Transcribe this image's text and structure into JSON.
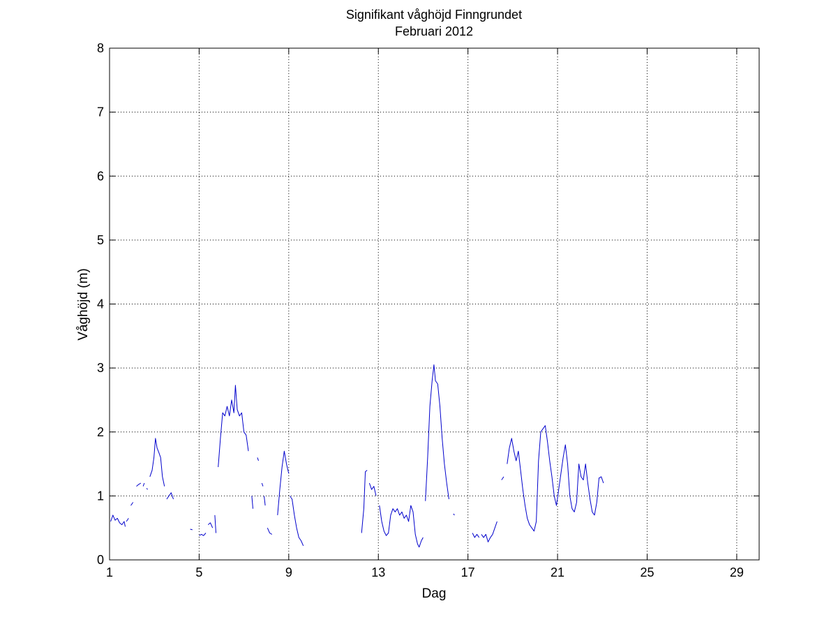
{
  "chart_data": {
    "type": "line",
    "title": "Signifikant våghöjd Finngrundet",
    "subtitle": "Februari 2012",
    "xlabel": "Dag",
    "ylabel": "Våghöjd (m)",
    "xlim": [
      1,
      30
    ],
    "ylim": [
      0,
      8
    ],
    "xticks": [
      1,
      5,
      9,
      13,
      17,
      21,
      25,
      29
    ],
    "yticks": [
      0,
      1,
      2,
      3,
      4,
      5,
      6,
      7,
      8
    ],
    "grid": true,
    "line_color": "#0000cc",
    "series": [
      {
        "segments": [
          [
            [
              1.05,
              0.6
            ],
            [
              1.15,
              0.7
            ],
            [
              1.25,
              0.62
            ],
            [
              1.35,
              0.65
            ],
            [
              1.45,
              0.58
            ],
            [
              1.55,
              0.55
            ],
            [
              1.65,
              0.6
            ],
            [
              1.7,
              0.52
            ]
          ],
          [
            [
              1.75,
              0.6
            ],
            [
              1.85,
              0.65
            ]
          ],
          [
            [
              1.95,
              0.85
            ],
            [
              2.05,
              0.9
            ]
          ],
          [
            [
              2.2,
              1.15
            ],
            [
              2.3,
              1.18
            ],
            [
              2.4,
              1.2
            ]
          ],
          [
            [
              2.5,
              1.15
            ],
            [
              2.55,
              1.2
            ]
          ],
          [
            [
              2.65,
              1.12
            ],
            [
              2.7,
              1.1
            ]
          ],
          [
            [
              2.8,
              1.3
            ],
            [
              2.9,
              1.4
            ],
            [
              2.98,
              1.6
            ],
            [
              3.05,
              1.9
            ],
            [
              3.12,
              1.75
            ],
            [
              3.2,
              1.68
            ],
            [
              3.28,
              1.6
            ],
            [
              3.36,
              1.3
            ],
            [
              3.45,
              1.15
            ]
          ],
          [
            [
              3.55,
              0.95
            ],
            [
              3.65,
              1.0
            ],
            [
              3.75,
              1.05
            ],
            [
              3.85,
              0.95
            ]
          ],
          [
            [
              4.6,
              0.48
            ],
            [
              4.7,
              0.47
            ]
          ],
          [
            [
              5.0,
              0.38
            ],
            [
              5.1,
              0.4
            ],
            [
              5.2,
              0.38
            ],
            [
              5.3,
              0.42
            ]
          ],
          [
            [
              5.4,
              0.55
            ],
            [
              5.5,
              0.58
            ],
            [
              5.6,
              0.5
            ]
          ],
          [
            [
              5.7,
              0.7
            ],
            [
              5.75,
              0.42
            ]
          ],
          [
            [
              5.85,
              1.45
            ],
            [
              5.95,
              1.9
            ],
            [
              6.05,
              2.3
            ],
            [
              6.15,
              2.25
            ],
            [
              6.25,
              2.4
            ],
            [
              6.35,
              2.25
            ],
            [
              6.45,
              2.5
            ],
            [
              6.55,
              2.3
            ],
            [
              6.62,
              2.73
            ],
            [
              6.7,
              2.35
            ],
            [
              6.8,
              2.25
            ],
            [
              6.9,
              2.3
            ],
            [
              7.0,
              2.0
            ],
            [
              7.1,
              1.95
            ],
            [
              7.2,
              1.7
            ]
          ],
          [
            [
              7.35,
              1.0
            ],
            [
              7.4,
              0.8
            ]
          ],
          [
            [
              7.6,
              1.6
            ],
            [
              7.65,
              1.55
            ]
          ],
          [
            [
              7.8,
              1.2
            ],
            [
              7.85,
              1.15
            ]
          ],
          [
            [
              7.9,
              1.0
            ],
            [
              7.95,
              0.85
            ]
          ],
          [
            [
              8.05,
              0.5
            ],
            [
              8.15,
              0.42
            ],
            [
              8.25,
              0.4
            ]
          ],
          [
            [
              8.5,
              0.7
            ],
            [
              8.6,
              1.1
            ],
            [
              8.7,
              1.45
            ],
            [
              8.8,
              1.7
            ],
            [
              8.9,
              1.5
            ],
            [
              9.0,
              1.35
            ]
          ],
          [
            [
              9.05,
              1.0
            ],
            [
              9.15,
              0.95
            ],
            [
              9.25,
              0.7
            ],
            [
              9.35,
              0.5
            ],
            [
              9.45,
              0.35
            ],
            [
              9.55,
              0.3
            ],
            [
              9.65,
              0.22
            ]
          ],
          [
            [
              12.25,
              0.42
            ],
            [
              12.35,
              0.8
            ],
            [
              12.42,
              1.38
            ],
            [
              12.5,
              1.4
            ]
          ],
          [
            [
              12.6,
              1.2
            ],
            [
              12.7,
              1.1
            ],
            [
              12.8,
              1.15
            ],
            [
              12.9,
              1.0
            ]
          ],
          [
            [
              13.05,
              0.85
            ],
            [
              13.15,
              0.6
            ],
            [
              13.25,
              0.45
            ],
            [
              13.35,
              0.38
            ],
            [
              13.45,
              0.42
            ],
            [
              13.55,
              0.7
            ],
            [
              13.65,
              0.8
            ],
            [
              13.75,
              0.75
            ],
            [
              13.85,
              0.8
            ],
            [
              13.95,
              0.7
            ],
            [
              14.05,
              0.75
            ],
            [
              14.15,
              0.65
            ],
            [
              14.25,
              0.7
            ],
            [
              14.35,
              0.6
            ],
            [
              14.45,
              0.85
            ],
            [
              14.55,
              0.75
            ],
            [
              14.65,
              0.4
            ],
            [
              14.75,
              0.25
            ],
            [
              14.82,
              0.2
            ],
            [
              14.92,
              0.3
            ],
            [
              15.0,
              0.35
            ]
          ],
          [
            [
              15.1,
              0.92
            ],
            [
              15.2,
              1.6
            ],
            [
              15.3,
              2.4
            ],
            [
              15.4,
              2.8
            ],
            [
              15.48,
              3.05
            ],
            [
              15.55,
              2.8
            ],
            [
              15.65,
              2.75
            ],
            [
              15.75,
              2.4
            ],
            [
              15.85,
              1.9
            ],
            [
              15.95,
              1.5
            ],
            [
              16.05,
              1.2
            ],
            [
              16.15,
              0.95
            ]
          ],
          [
            [
              16.35,
              0.72
            ],
            [
              16.4,
              0.7
            ]
          ],
          [
            [
              17.2,
              0.42
            ],
            [
              17.3,
              0.35
            ],
            [
              17.4,
              0.4
            ],
            [
              17.5,
              0.35
            ]
          ],
          [
            [
              17.6,
              0.4
            ],
            [
              17.7,
              0.35
            ],
            [
              17.8,
              0.4
            ],
            [
              17.9,
              0.28
            ],
            [
              18.0,
              0.35
            ],
            [
              18.1,
              0.4
            ],
            [
              18.2,
              0.5
            ],
            [
              18.3,
              0.6
            ]
          ],
          [
            [
              18.5,
              1.25
            ],
            [
              18.6,
              1.3
            ]
          ],
          [
            [
              18.75,
              1.5
            ],
            [
              18.85,
              1.75
            ],
            [
              18.95,
              1.9
            ],
            [
              19.05,
              1.7
            ],
            [
              19.15,
              1.55
            ],
            [
              19.25,
              1.7
            ],
            [
              19.35,
              1.4
            ],
            [
              19.45,
              1.1
            ],
            [
              19.55,
              0.85
            ],
            [
              19.65,
              0.65
            ],
            [
              19.75,
              0.55
            ],
            [
              19.85,
              0.5
            ],
            [
              19.95,
              0.45
            ],
            [
              20.05,
              0.6
            ],
            [
              20.15,
              1.55
            ],
            [
              20.25,
              2.0
            ],
            [
              20.35,
              2.05
            ],
            [
              20.45,
              2.1
            ],
            [
              20.55,
              1.85
            ],
            [
              20.65,
              1.55
            ],
            [
              20.75,
              1.3
            ],
            [
              20.85,
              1.0
            ],
            [
              20.95,
              0.85
            ],
            [
              21.05,
              1.1
            ],
            [
              21.15,
              1.35
            ],
            [
              21.25,
              1.6
            ],
            [
              21.35,
              1.8
            ],
            [
              21.45,
              1.5
            ],
            [
              21.55,
              1.0
            ],
            [
              21.65,
              0.8
            ],
            [
              21.75,
              0.75
            ],
            [
              21.85,
              0.9
            ],
            [
              21.95,
              1.5
            ],
            [
              22.05,
              1.3
            ],
            [
              22.15,
              1.25
            ],
            [
              22.25,
              1.5
            ],
            [
              22.35,
              1.2
            ],
            [
              22.45,
              0.95
            ],
            [
              22.55,
              0.75
            ],
            [
              22.65,
              0.7
            ],
            [
              22.75,
              0.9
            ],
            [
              22.85,
              1.28
            ],
            [
              22.95,
              1.3
            ],
            [
              23.05,
              1.2
            ]
          ]
        ]
      }
    ]
  }
}
